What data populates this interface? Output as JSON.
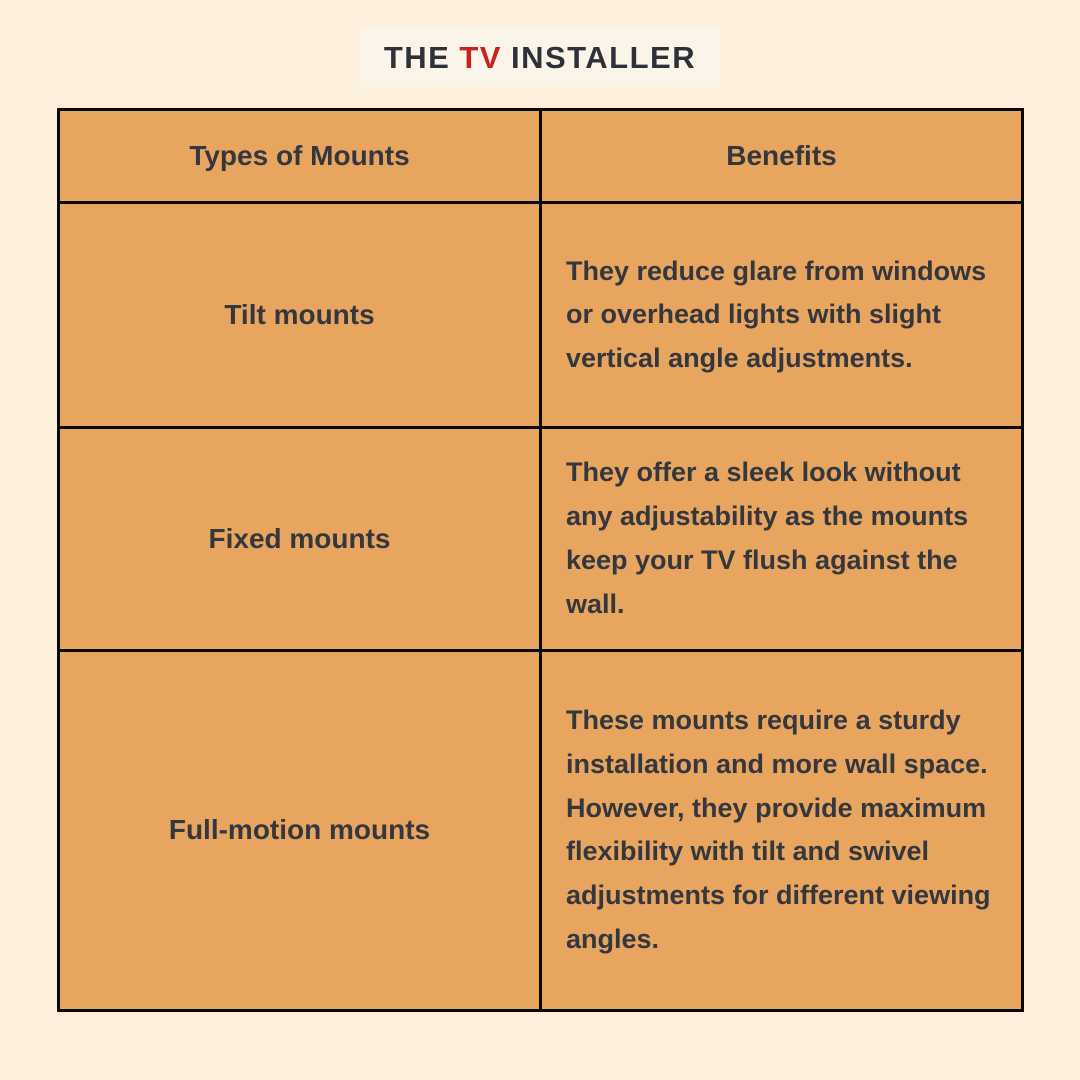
{
  "page": {
    "background_color": "#FCF0DC"
  },
  "logo": {
    "part1": "THE",
    "part2": "TV",
    "part3": "INSTALLER",
    "text_color": "#2E3138",
    "accent_color": "#C7231F",
    "box_background": "#FBF5E9"
  },
  "table": {
    "cell_background": "#E8A55F",
    "border_color": "#0A0A0A",
    "text_color": "#34373D",
    "headers": [
      "Types of Mounts",
      "Benefits"
    ],
    "rows": [
      {
        "type": "Tilt mounts",
        "benefit": "They reduce glare from windows or overhead lights with slight vertical angle adjustments."
      },
      {
        "type": "Fixed mounts",
        "benefit": "They offer a sleek look without any adjustability as the mounts keep your TV flush against the wall."
      },
      {
        "type": "Full-motion mounts",
        "benefit": "These mounts require a sturdy installation and more wall space. However, they provide maximum flexibility with tilt and swivel adjustments for different viewing angles."
      }
    ]
  }
}
